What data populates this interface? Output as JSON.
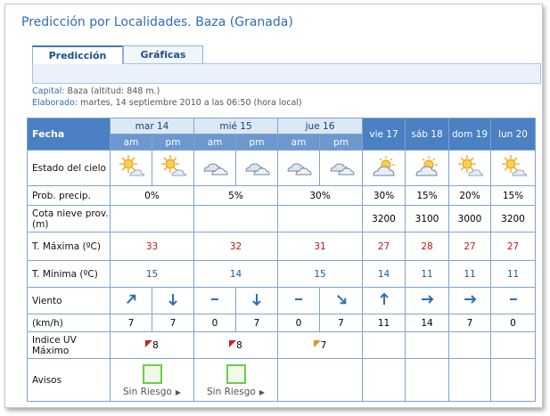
{
  "header": {
    "title": "Predicción por Localidades. Baza (Granada)"
  },
  "tabs": [
    "Predicción",
    "Gráficas"
  ],
  "info": {
    "capital_label": "Capital:",
    "capital": "Baza (altitud: 848 m.)",
    "elaborado_label": "Elaborado:",
    "elaborado": "martes, 14 septiembre 2010 a las 06:50 (hora local)"
  },
  "table": {
    "header": "Fecha",
    "days": [
      {
        "day": "mar 14",
        "periods": [
          "am",
          "pm"
        ]
      },
      {
        "day": "mié 15",
        "periods": [
          "am",
          "pm"
        ]
      },
      {
        "day": "jue 16",
        "periods": [
          "am",
          "pm"
        ]
      },
      {
        "day": "vie 17"
      },
      {
        "day": "sáb 18"
      },
      {
        "day": "dom 19"
      },
      {
        "day": "lun 20"
      }
    ],
    "rows": [
      {
        "label": "Estado del cielo"
      },
      {
        "label": "Prob. precip.",
        "cells": [
          "0%",
          "5%",
          "30%",
          "30%",
          "15%",
          "20%",
          "15%"
        ]
      },
      {
        "label": "Cota nieve prov.(m)",
        "cells": [
          null,
          null,
          null,
          3200,
          3100,
          3000,
          3200
        ]
      },
      {
        "label": "T. Máxima (ºC)",
        "cells": [
          33,
          32,
          31,
          27,
          28,
          27,
          27
        ]
      },
      {
        "label": "T. Mínima (ºC)",
        "cells": [
          15,
          14,
          15,
          14,
          11,
          11,
          11
        ]
      },
      {
        "label": "Viento"
      },
      {
        "label": "(km/h)",
        "cells": [
          7,
          7,
          0,
          7,
          0,
          7,
          11,
          14,
          7,
          0
        ]
      },
      {
        "label": "Indice UV Máximo",
        "cells": [
          8,
          8,
          7,
          null,
          null,
          null,
          null
        ]
      },
      {
        "label": "Avisos",
        "cells": [
          "Sin Riesgo",
          "Sin Riesgo",
          null,
          null,
          null,
          null,
          null
        ]
      }
    ]
  }
}
